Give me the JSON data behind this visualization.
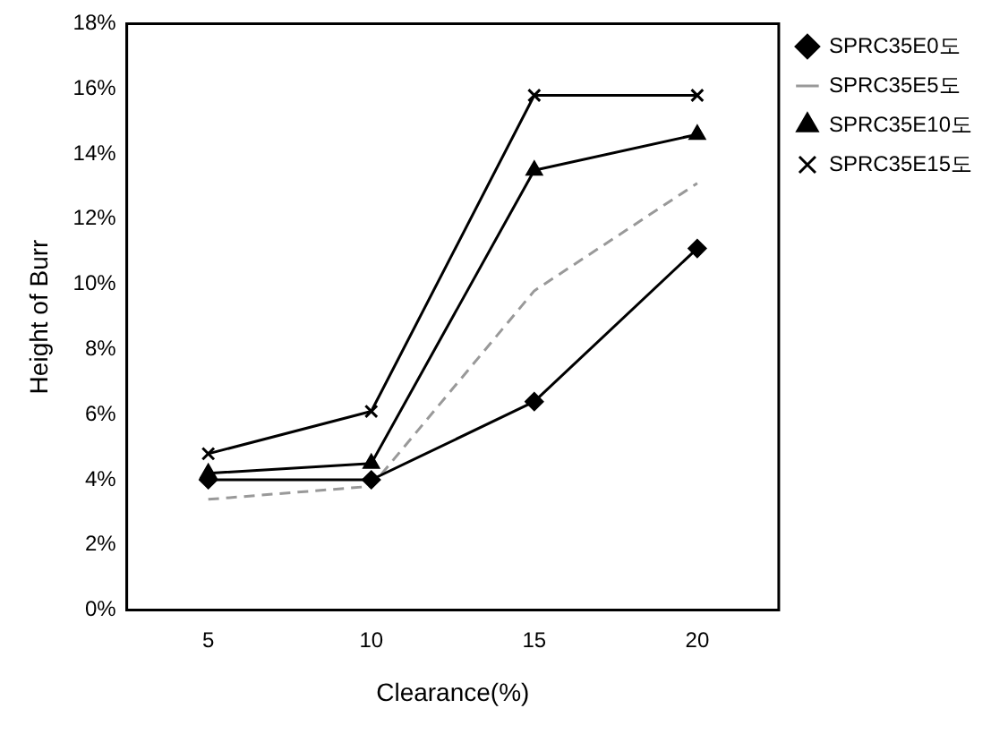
{
  "chart_data": {
    "type": "line",
    "xlabel": "Clearance(%)",
    "ylabel": "Height of Burr",
    "categories": [
      "5",
      "10",
      "15",
      "20"
    ],
    "series": [
      {
        "name": "SPRC35E0도",
        "color": "#000000",
        "values": [
          4.0,
          4.0,
          6.4,
          11.1
        ],
        "marker": "diamond",
        "line_style": "solid"
      },
      {
        "name": "SPRC35E5도",
        "color": "#999999",
        "values": [
          3.4,
          3.8,
          9.8,
          13.1
        ],
        "marker": "none",
        "line_style": "dashed"
      },
      {
        "name": "SPRC35E10도",
        "color": "#000000",
        "values": [
          4.2,
          4.5,
          13.5,
          14.6
        ],
        "marker": "triangle",
        "line_style": "solid"
      },
      {
        "name": "SPRC35E15도",
        "color": "#000000",
        "values": [
          4.8,
          6.1,
          15.8,
          15.8
        ],
        "marker": "cross",
        "line_style": "solid"
      }
    ],
    "ylim": [
      0,
      18
    ],
    "yticks": [
      {
        "value": 0,
        "label": "0%"
      },
      {
        "value": 2,
        "label": "2%"
      },
      {
        "value": 4,
        "label": "4%"
      },
      {
        "value": 6,
        "label": "6%"
      },
      {
        "value": 8,
        "label": "8%"
      },
      {
        "value": 10,
        "label": "10%"
      },
      {
        "value": 12,
        "label": "12%"
      },
      {
        "value": 14,
        "label": "14%"
      },
      {
        "value": 16,
        "label": "16%"
      },
      {
        "value": 18,
        "label": "18%"
      }
    ],
    "grid": false,
    "legend": "top right"
  }
}
